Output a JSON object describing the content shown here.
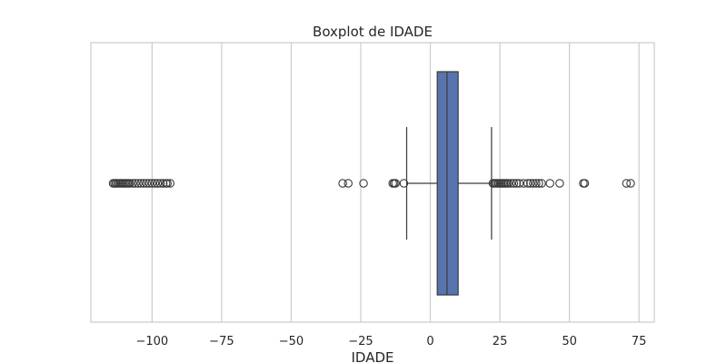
{
  "chart_data": {
    "type": "boxplot",
    "orientation": "horizontal",
    "title": "Boxplot de IDADE",
    "xlabel": "IDADE",
    "ylabel": "",
    "xlim": [
      -122,
      80.5
    ],
    "grid": true,
    "x_ticks": [
      {
        "value": -100,
        "label": "−100"
      },
      {
        "value": -75,
        "label": "−75"
      },
      {
        "value": -50,
        "label": "−50"
      },
      {
        "value": -25,
        "label": "−25"
      },
      {
        "value": 0,
        "label": "0"
      },
      {
        "value": 25,
        "label": "25"
      },
      {
        "value": 50,
        "label": "50"
      },
      {
        "value": 75,
        "label": "75"
      }
    ],
    "box": {
      "whisker_low": -8.5,
      "q1": 2.5,
      "median": 6,
      "q3": 10,
      "whisker_high": 22
    },
    "outliers": [
      -114,
      -113.5,
      -113,
      -112.5,
      -112,
      -111.5,
      -111,
      -110.5,
      -110,
      -109.5,
      -109,
      -108.5,
      -108,
      -107,
      -106,
      -105,
      -104,
      -103,
      -102,
      -101,
      -100,
      -99,
      -98,
      -97,
      -96,
      -95,
      -94.5,
      -93.5,
      -31.5,
      -29.5,
      -24,
      -13.5,
      -13,
      -12.5,
      -9.5,
      22.5,
      23,
      23.5,
      24,
      24.5,
      25,
      25.5,
      26,
      26.5,
      27,
      27.5,
      28,
      29,
      30,
      31,
      32,
      33.5,
      35,
      36,
      37,
      38,
      39,
      40,
      43,
      46.5,
      55,
      55.5,
      70.5,
      72
    ],
    "colors": {
      "box_fill": "#5874ac",
      "edge": "#3a3a3a",
      "grid": "#cccccc",
      "frame": "#cccccc"
    }
  }
}
